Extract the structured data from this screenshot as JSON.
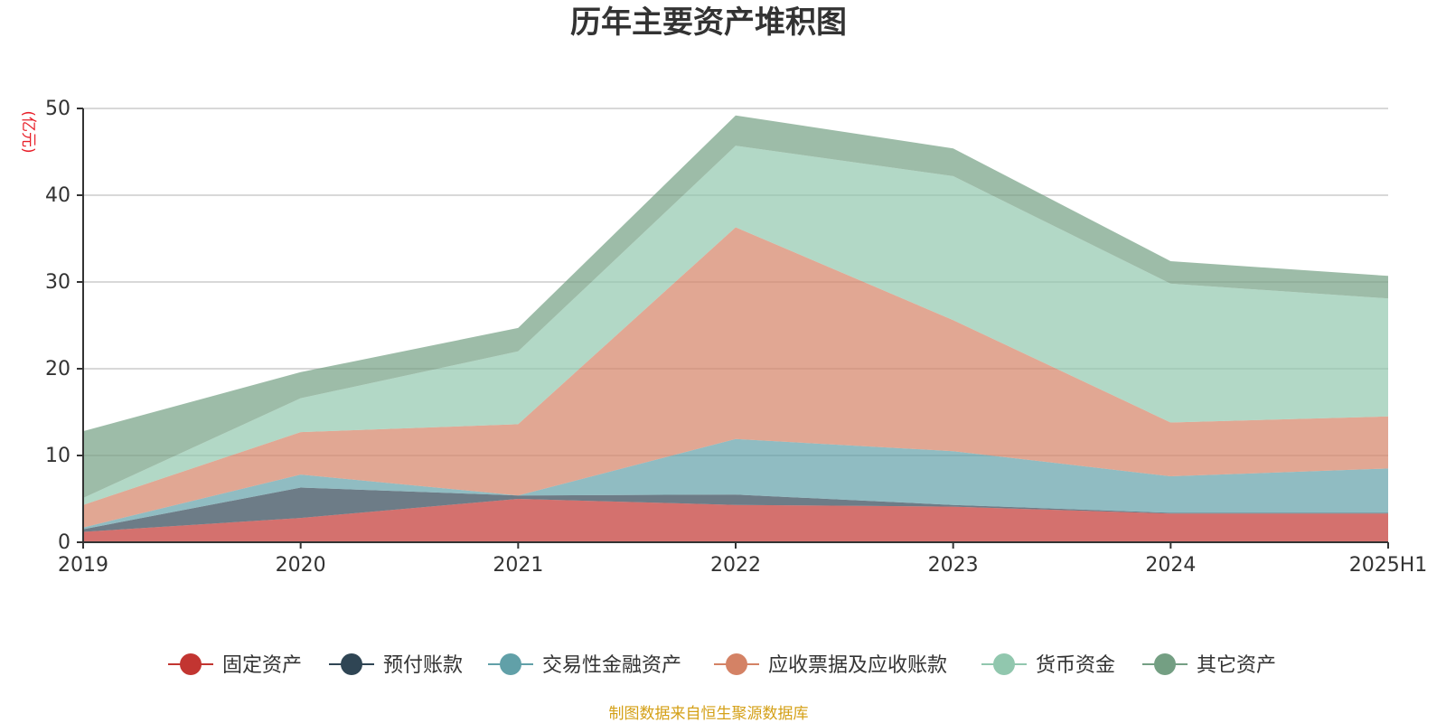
{
  "chart_data": {
    "type": "area",
    "stacked": true,
    "title": "历年主要资产堆积图",
    "ylabel": "(亿元)",
    "xlabel": "",
    "ylim": [
      0,
      50
    ],
    "yticks": [
      0,
      10,
      20,
      30,
      40,
      50
    ],
    "grid": true,
    "legend_position": "bottom",
    "categories": [
      "2019",
      "2020",
      "2021",
      "2022",
      "2023",
      "2024",
      "2025H1"
    ],
    "series": [
      {
        "name": "固定资产",
        "color": "#c23531",
        "values": [
          1.2,
          2.8,
          5.0,
          4.3,
          4.1,
          3.3,
          3.3
        ]
      },
      {
        "name": "预付账款",
        "color": "#2f4554",
        "values": [
          0.3,
          3.5,
          0.4,
          1.2,
          0.2,
          0.1,
          0.1
        ]
      },
      {
        "name": "交易性金融资产",
        "color": "#61a0a8",
        "values": [
          0.2,
          1.5,
          0.0,
          6.4,
          6.2,
          4.2,
          5.1
        ]
      },
      {
        "name": "应收票据及应收账款",
        "color": "#d48265",
        "values": [
          2.6,
          4.9,
          8.2,
          24.4,
          15.1,
          6.2,
          6.0
        ]
      },
      {
        "name": "货币资金",
        "color": "#91c7ae",
        "values": [
          0.8,
          3.9,
          8.4,
          9.4,
          16.6,
          16.0,
          13.6
        ]
      },
      {
        "name": "其它资产",
        "color": "#749f83",
        "values": [
          7.7,
          3.0,
          2.7,
          3.5,
          3.2,
          2.6,
          2.6
        ]
      }
    ]
  },
  "source_text": "制图数据来自恒生聚源数据库",
  "colors": {
    "unit": "#e8202a",
    "source": "#d4a017",
    "grid": "#cccccc",
    "axis": "#333333"
  }
}
